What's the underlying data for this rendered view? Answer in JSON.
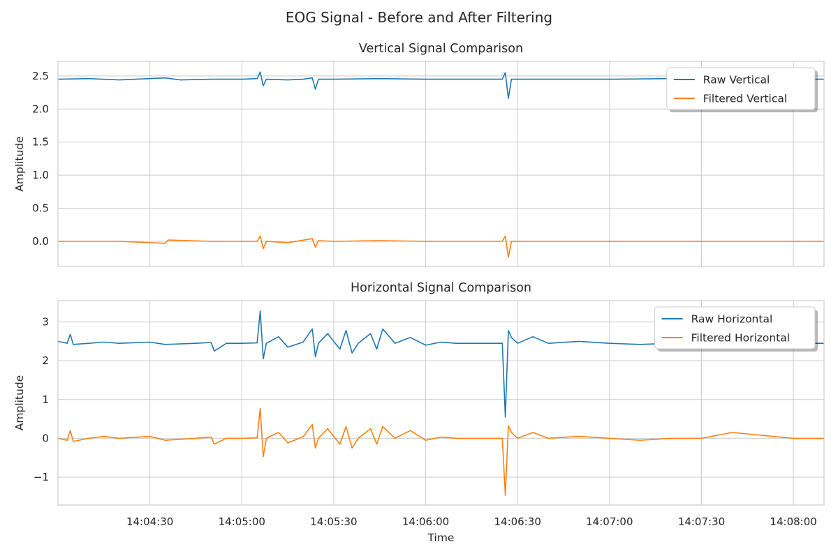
{
  "figure": {
    "title": "EOG Signal - Before and After Filtering"
  },
  "colors": {
    "raw": "#1f77b4",
    "filtered": "#ff7f0e",
    "grid": "#cccccc",
    "axes_bg": "#ffffff"
  },
  "chart_data": [
    {
      "type": "line",
      "title": "Vertical Signal Comparison",
      "xlabel": "",
      "ylabel": "Amplitude",
      "xlim": [
        "14:04:00",
        "14:08:10"
      ],
      "ylim": [
        -0.38,
        2.72
      ],
      "yticks": [
        0.0,
        0.5,
        1.0,
        1.5,
        2.0,
        2.5
      ],
      "ytick_labels": [
        "0.0",
        "0.5",
        "1.0",
        "1.5",
        "2.0",
        "2.5"
      ],
      "xticks": [
        "14:04:30",
        "14:05:00",
        "14:05:30",
        "14:06:00",
        "14:06:30",
        "14:07:00",
        "14:07:30",
        "14:08:00"
      ],
      "show_xtick_labels": false,
      "grid": true,
      "legend": "top-right",
      "series": [
        {
          "name": "Raw Vertical",
          "color": "#1f77b4",
          "x": [
            "14:04:00",
            "14:04:10",
            "14:04:20",
            "14:04:35",
            "14:04:40",
            "14:04:50",
            "14:05:00",
            "14:05:05",
            "14:05:06",
            "14:05:07",
            "14:05:08",
            "14:05:15",
            "14:05:20",
            "14:05:23",
            "14:05:24",
            "14:05:25",
            "14:05:30",
            "14:05:45",
            "14:06:00",
            "14:06:15",
            "14:06:25",
            "14:06:26",
            "14:06:27",
            "14:06:28",
            "14:06:40",
            "14:07:00",
            "14:07:20",
            "14:07:40",
            "14:08:00",
            "14:08:10"
          ],
          "y": [
            2.45,
            2.46,
            2.44,
            2.47,
            2.44,
            2.45,
            2.45,
            2.46,
            2.56,
            2.35,
            2.45,
            2.44,
            2.45,
            2.47,
            2.3,
            2.45,
            2.45,
            2.46,
            2.45,
            2.45,
            2.45,
            2.55,
            2.16,
            2.45,
            2.45,
            2.45,
            2.46,
            2.45,
            2.45,
            2.45
          ]
        },
        {
          "name": "Filtered Vertical",
          "color": "#ff7f0e",
          "x": [
            "14:04:00",
            "14:04:20",
            "14:04:35",
            "14:04:36",
            "14:04:50",
            "14:05:05",
            "14:05:06",
            "14:05:07",
            "14:05:08",
            "14:05:15",
            "14:05:23",
            "14:05:24",
            "14:05:25",
            "14:05:30",
            "14:05:45",
            "14:06:00",
            "14:06:25",
            "14:06:26",
            "14:06:27",
            "14:06:28",
            "14:06:40",
            "14:07:00",
            "14:07:30",
            "14:08:00",
            "14:08:10"
          ],
          "y": [
            0.0,
            0.0,
            -0.03,
            0.02,
            0.0,
            0.0,
            0.08,
            -0.11,
            0.0,
            -0.02,
            0.04,
            -0.09,
            0.01,
            0.0,
            0.01,
            0.0,
            0.0,
            0.08,
            -0.24,
            0.0,
            0.0,
            0.0,
            0.0,
            0.0,
            0.0
          ]
        }
      ]
    },
    {
      "type": "line",
      "title": "Horizontal Signal Comparison",
      "xlabel": "Time",
      "ylabel": "Amplitude",
      "xlim": [
        "14:04:00",
        "14:08:10"
      ],
      "ylim": [
        -1.72,
        3.55
      ],
      "yticks": [
        -1,
        0,
        1,
        2,
        3
      ],
      "ytick_labels": [
        "−1",
        "0",
        "1",
        "2",
        "3"
      ],
      "xticks": [
        "14:04:30",
        "14:05:00",
        "14:05:30",
        "14:06:00",
        "14:06:30",
        "14:07:00",
        "14:07:30",
        "14:08:00"
      ],
      "show_xtick_labels": true,
      "grid": true,
      "legend": "top-right",
      "series": [
        {
          "name": "Raw Horizontal",
          "color": "#1f77b4",
          "x": [
            "14:04:00",
            "14:04:03",
            "14:04:04",
            "14:04:05",
            "14:04:10",
            "14:04:15",
            "14:04:20",
            "14:04:30",
            "14:04:35",
            "14:04:45",
            "14:04:50",
            "14:04:51",
            "14:04:55",
            "14:05:00",
            "14:05:05",
            "14:05:06",
            "14:05:07",
            "14:05:08",
            "14:05:12",
            "14:05:15",
            "14:05:20",
            "14:05:23",
            "14:05:24",
            "14:05:25",
            "14:05:28",
            "14:05:32",
            "14:05:34",
            "14:05:36",
            "14:05:38",
            "14:05:42",
            "14:05:44",
            "14:05:46",
            "14:05:50",
            "14:05:55",
            "14:06:00",
            "14:06:05",
            "14:06:10",
            "14:06:20",
            "14:06:25",
            "14:06:26",
            "14:06:27",
            "14:06:28",
            "14:06:30",
            "14:06:35",
            "14:06:40",
            "14:06:50",
            "14:07:00",
            "14:07:10",
            "14:07:20",
            "14:07:30",
            "14:07:40",
            "14:08:00",
            "14:08:10"
          ],
          "y": [
            2.5,
            2.45,
            2.68,
            2.42,
            2.45,
            2.48,
            2.45,
            2.48,
            2.42,
            2.45,
            2.47,
            2.25,
            2.45,
            2.45,
            2.46,
            3.28,
            2.05,
            2.45,
            2.62,
            2.35,
            2.48,
            2.82,
            2.1,
            2.45,
            2.7,
            2.3,
            2.78,
            2.2,
            2.45,
            2.7,
            2.3,
            2.82,
            2.45,
            2.6,
            2.4,
            2.48,
            2.45,
            2.45,
            2.45,
            0.55,
            2.78,
            2.6,
            2.45,
            2.62,
            2.45,
            2.5,
            2.45,
            2.42,
            2.45,
            2.45,
            2.45,
            2.45,
            2.45
          ]
        },
        {
          "name": "Filtered Horizontal",
          "color": "#ff7f0e",
          "x": [
            "14:04:00",
            "14:04:03",
            "14:04:04",
            "14:04:05",
            "14:04:10",
            "14:04:15",
            "14:04:20",
            "14:04:30",
            "14:04:35",
            "14:04:45",
            "14:04:50",
            "14:04:51",
            "14:04:55",
            "14:05:00",
            "14:05:05",
            "14:05:06",
            "14:05:07",
            "14:05:08",
            "14:05:12",
            "14:05:15",
            "14:05:20",
            "14:05:23",
            "14:05:24",
            "14:05:25",
            "14:05:28",
            "14:05:32",
            "14:05:34",
            "14:05:36",
            "14:05:38",
            "14:05:42",
            "14:05:44",
            "14:05:46",
            "14:05:50",
            "14:05:55",
            "14:06:00",
            "14:06:05",
            "14:06:10",
            "14:06:20",
            "14:06:25",
            "14:06:26",
            "14:06:27",
            "14:06:28",
            "14:06:30",
            "14:06:35",
            "14:06:40",
            "14:06:50",
            "14:07:00",
            "14:07:10",
            "14:07:20",
            "14:07:30",
            "14:07:40",
            "14:08:00",
            "14:08:10"
          ],
          "y": [
            0.0,
            -0.05,
            0.2,
            -0.08,
            0.0,
            0.05,
            0.0,
            0.05,
            -0.05,
            0.0,
            0.03,
            -0.15,
            0.0,
            0.0,
            0.01,
            0.77,
            -0.47,
            0.0,
            0.15,
            -0.12,
            0.04,
            0.35,
            -0.25,
            0.0,
            0.25,
            -0.15,
            0.3,
            -0.25,
            0.0,
            0.25,
            -0.15,
            0.3,
            0.0,
            0.2,
            -0.05,
            0.03,
            0.0,
            0.0,
            0.0,
            -1.47,
            0.32,
            0.15,
            0.0,
            0.15,
            0.0,
            0.05,
            0.0,
            -0.05,
            0.0,
            0.0,
            0.15,
            0.0,
            0.0
          ]
        }
      ]
    }
  ]
}
